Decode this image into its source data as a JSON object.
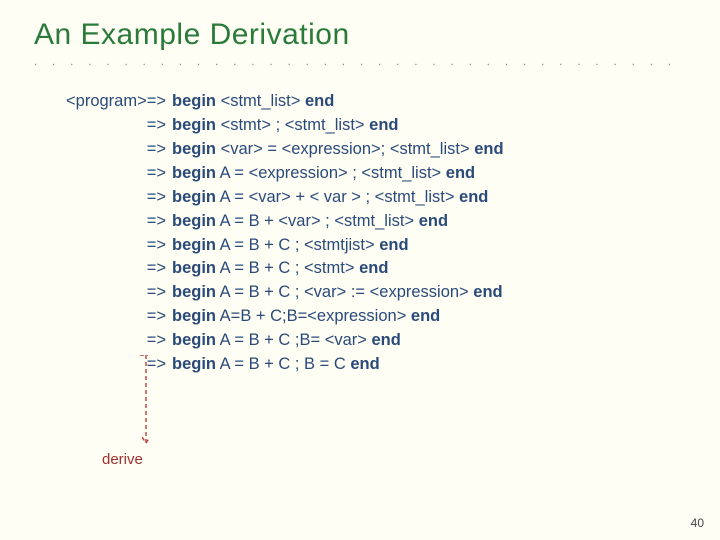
{
  "title": "An Example Derivation",
  "colors": {
    "title": "#2a7a3a",
    "text": "#2a4a7a",
    "background": "#fffef5",
    "derive": "#a03030",
    "arrow": "#c04040"
  },
  "lhs_first": "<program>=>",
  "lhs_rest": "=>",
  "rows": [
    {
      "b": "begin",
      "r": " <stmt_list> ",
      "e": "end"
    },
    {
      "b": "begin",
      "r": " <stmt> ; <stmt_list> ",
      "e": "end"
    },
    {
      "b": "begin",
      "r": " <var> = <expression>; <stmt_list> ",
      "e": "end"
    },
    {
      "b": "begin",
      "r": " A = <expression> ; <stmt_list> ",
      "e": "end"
    },
    {
      "b": "begin",
      "r": " A = <var> + < var > ; <stmt_list> ",
      "e": "end"
    },
    {
      "b": "begin",
      "r": " A = B + <var> ; <stmt_list> ",
      "e": "end"
    },
    {
      "b": "begin",
      "r": " A = B + C ; <stmtjist> ",
      "e": "end"
    },
    {
      "b": "begin",
      "r": " A = B + C ; <stmt> ",
      "e": "end"
    },
    {
      "b": "begin",
      "r": " A = B + C ; <var> := <expression> ",
      "e": "end"
    },
    {
      "b": "begin",
      "r": " A=B + C;B=<expression> ",
      "e": "end"
    },
    {
      "b": "begin",
      "r": " A = B + C ;B= <var> ",
      "e": "end"
    },
    {
      "b": "begin",
      "r": " A = B + C ; B = C ",
      "e": "end"
    }
  ],
  "derive_label": "derive",
  "page_number": "40",
  "arrow": {
    "stroke": "#c04040",
    "stroke_width": 1.4,
    "dash": "4 3"
  }
}
